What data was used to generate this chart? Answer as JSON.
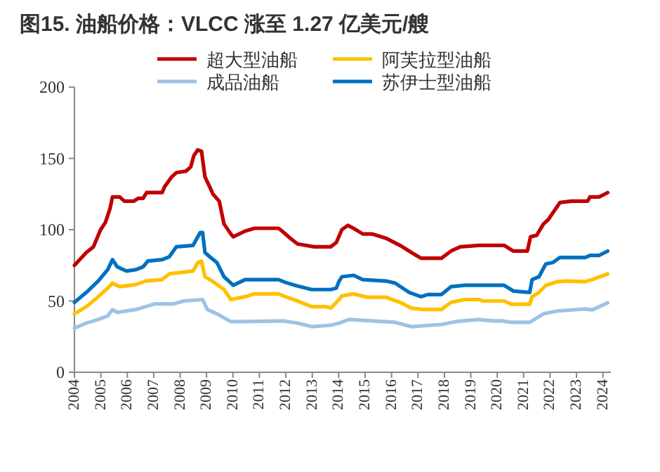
{
  "chart_data": {
    "type": "line",
    "title": "图15. 油船价格：VLCC 涨至 1.27 亿美元/艘",
    "xlim": [
      2004,
      2024.3
    ],
    "ylim": [
      0,
      200
    ],
    "xticks": [
      2004,
      2005,
      2006,
      2007,
      2008,
      2009,
      2010,
      2011,
      2012,
      2013,
      2014,
      2015,
      2016,
      2017,
      2018,
      2019,
      2020,
      2021,
      2022,
      2023,
      2024
    ],
    "yticks": [
      0,
      50,
      100,
      150,
      200
    ],
    "legend": "top",
    "series": [
      {
        "name": "超大型油船",
        "color": "#c00000",
        "x": [
          2004.0,
          2004.45,
          2004.72,
          2004.99,
          2005.17,
          2005.35,
          2005.44,
          2005.71,
          2005.89,
          2006.24,
          2006.42,
          2006.6,
          2006.73,
          2007.32,
          2007.41,
          2007.68,
          2007.86,
          2008.22,
          2008.4,
          2008.52,
          2008.67,
          2008.81,
          2008.94,
          2009.12,
          2009.24,
          2009.48,
          2009.66,
          2009.92,
          2010.01,
          2010.46,
          2010.82,
          2011.72,
          2011.86,
          2012.17,
          2012.44,
          2013.07,
          2013.7,
          2013.91,
          2014.12,
          2014.35,
          2014.56,
          2014.91,
          2015.26,
          2015.79,
          2016.32,
          2016.84,
          2017.11,
          2017.89,
          2018.25,
          2018.6,
          2019.3,
          2020.26,
          2020.61,
          2021.14,
          2021.26,
          2021.49,
          2021.75,
          2021.93,
          2022.37,
          2022.81,
          2023.42,
          2023.51,
          2023.86,
          2024.18
        ],
        "values": [
          75,
          84,
          88,
          100,
          105,
          115,
          123,
          123,
          120,
          120,
          122,
          122,
          126,
          126,
          130,
          137,
          140,
          141,
          144,
          152,
          156,
          155,
          137,
          130,
          125,
          120,
          104,
          97,
          95,
          99,
          101,
          101,
          99,
          94,
          90,
          88,
          88,
          91,
          100,
          103,
          101,
          97,
          97,
          94,
          89,
          83,
          80,
          80,
          85,
          88,
          89,
          89,
          85,
          85,
          95,
          96,
          104,
          107,
          119,
          120,
          120,
          123,
          123,
          126
        ]
      },
      {
        "name": "阿芙拉型油船",
        "color": "#ffc000",
        "x": [
          2004.0,
          2004.45,
          2004.9,
          2005.26,
          2005.44,
          2005.71,
          2006.33,
          2006.69,
          2007.32,
          2007.59,
          2008.49,
          2008.67,
          2008.81,
          2008.94,
          2009.21,
          2009.66,
          2009.92,
          2010.46,
          2010.82,
          2011.72,
          2011.99,
          2012.44,
          2012.98,
          2013.52,
          2013.7,
          2014.02,
          2014.12,
          2014.56,
          2015.09,
          2015.79,
          2016.32,
          2016.75,
          2017.19,
          2017.89,
          2018.25,
          2018.77,
          2019.3,
          2019.47,
          2020.26,
          2020.53,
          2021.23,
          2021.32,
          2021.58,
          2021.84,
          2022.28,
          2022.63,
          2023.33,
          2023.6,
          2024.18
        ],
        "values": [
          41,
          46,
          53,
          59,
          62.5,
          60,
          61.5,
          64,
          65,
          69,
          71,
          77,
          78,
          67,
          64,
          58,
          51,
          53,
          55,
          55,
          53,
          50,
          46,
          46,
          45,
          51,
          53.6,
          55,
          52.6,
          52.6,
          49,
          45,
          44,
          44,
          49,
          51,
          51,
          50,
          50,
          47.7,
          47.7,
          53,
          56,
          61,
          63.5,
          64,
          63.5,
          65,
          69
        ]
      },
      {
        "name": "成品油船",
        "color": "#9dc3e6",
        "x": [
          2004.0,
          2004.45,
          2004.9,
          2005.26,
          2005.44,
          2005.62,
          2006.33,
          2006.69,
          2007.05,
          2007.77,
          2008.13,
          2008.85,
          2009.03,
          2009.39,
          2009.92,
          2010.46,
          2011.9,
          2012.44,
          2012.98,
          2013.7,
          2014.02,
          2014.39,
          2015.26,
          2016.14,
          2016.75,
          2017.89,
          2018.42,
          2019.3,
          2019.82,
          2020.18,
          2020.53,
          2021.23,
          2021.75,
          2022.28,
          2023.33,
          2023.6,
          2024.18
        ],
        "values": [
          31,
          34.5,
          37,
          39.5,
          44,
          42,
          44,
          46,
          48,
          48,
          50,
          51,
          44,
          41,
          35.5,
          35.5,
          36,
          34.5,
          32,
          33,
          34.5,
          37,
          36,
          35,
          32,
          33.5,
          35.5,
          37,
          36,
          36,
          35,
          35,
          41,
          43,
          44.4,
          43.8,
          48.7
        ]
      },
      {
        "name": "苏伊士型油船",
        "color": "#0070c0",
        "x": [
          2004.0,
          2004.45,
          2004.9,
          2005.26,
          2005.44,
          2005.62,
          2005.97,
          2006.33,
          2006.6,
          2006.78,
          2007.32,
          2007.59,
          2007.86,
          2008.49,
          2008.76,
          2008.85,
          2008.94,
          2009.12,
          2009.39,
          2009.66,
          2010.01,
          2010.46,
          2011.72,
          2011.99,
          2012.35,
          2012.98,
          2013.7,
          2013.91,
          2014.02,
          2014.12,
          2014.56,
          2014.91,
          2015.79,
          2016.14,
          2016.67,
          2017.11,
          2017.37,
          2017.89,
          2018.25,
          2018.77,
          2020.26,
          2020.61,
          2021.23,
          2021.32,
          2021.58,
          2021.84,
          2022.11,
          2022.37,
          2023.33,
          2023.51,
          2023.86,
          2024.18
        ],
        "values": [
          49,
          56,
          64,
          72,
          79,
          74,
          71,
          72,
          74,
          78,
          79,
          81,
          88,
          89,
          98,
          98,
          84,
          81,
          77,
          67,
          61,
          65,
          65,
          63,
          61,
          58,
          58,
          59,
          64,
          67,
          68,
          65,
          64,
          62.5,
          56,
          53,
          54.5,
          54.5,
          60,
          61,
          61,
          57,
          56,
          65,
          67,
          76,
          77,
          80.5,
          80.5,
          82,
          82,
          85
        ]
      }
    ]
  }
}
